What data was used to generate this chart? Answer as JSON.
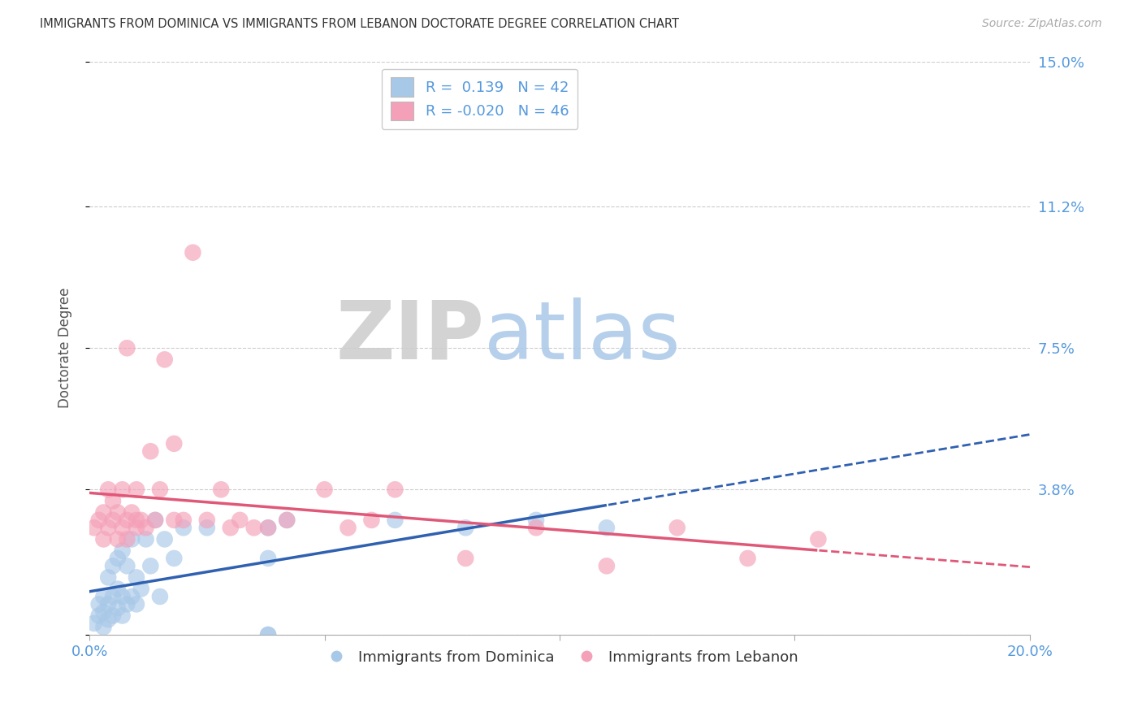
{
  "title": "IMMIGRANTS FROM DOMINICA VS IMMIGRANTS FROM LEBANON DOCTORATE DEGREE CORRELATION CHART",
  "source": "Source: ZipAtlas.com",
  "ylabel": "Doctorate Degree",
  "xlim": [
    0.0,
    0.2
  ],
  "ylim": [
    0.0,
    0.15
  ],
  "R_dominica": 0.139,
  "N_dominica": 42,
  "R_lebanon": -0.02,
  "N_lebanon": 46,
  "color_dominica": "#a8c8e8",
  "color_lebanon": "#f4a0b8",
  "line_color_dominica": "#3060b0",
  "line_color_lebanon": "#e05878",
  "legend_label_dominica": "Immigrants from Dominica",
  "legend_label_lebanon": "Immigrants from Lebanon",
  "dom_x": [
    0.001,
    0.002,
    0.002,
    0.003,
    0.003,
    0.003,
    0.004,
    0.004,
    0.004,
    0.005,
    0.005,
    0.005,
    0.006,
    0.006,
    0.006,
    0.007,
    0.007,
    0.007,
    0.008,
    0.008,
    0.009,
    0.009,
    0.01,
    0.01,
    0.011,
    0.012,
    0.013,
    0.014,
    0.015,
    0.016,
    0.018,
    0.02,
    0.025,
    0.038,
    0.042,
    0.038,
    0.038,
    0.065,
    0.08,
    0.095,
    0.11,
    0.038
  ],
  "dom_y": [
    0.003,
    0.005,
    0.008,
    0.006,
    0.01,
    0.002,
    0.004,
    0.008,
    0.015,
    0.005,
    0.01,
    0.018,
    0.007,
    0.012,
    0.02,
    0.005,
    0.01,
    0.022,
    0.008,
    0.018,
    0.01,
    0.025,
    0.008,
    0.015,
    0.012,
    0.025,
    0.018,
    0.03,
    0.01,
    0.025,
    0.02,
    0.028,
    0.028,
    0.028,
    0.03,
    0.02,
    0.0,
    0.03,
    0.028,
    0.03,
    0.028,
    0.0
  ],
  "leb_x": [
    0.001,
    0.002,
    0.003,
    0.003,
    0.004,
    0.004,
    0.005,
    0.005,
    0.006,
    0.006,
    0.007,
    0.007,
    0.008,
    0.008,
    0.009,
    0.01,
    0.01,
    0.011,
    0.012,
    0.013,
    0.014,
    0.015,
    0.016,
    0.018,
    0.02,
    0.022,
    0.025,
    0.028,
    0.03,
    0.032,
    0.038,
    0.042,
    0.05,
    0.055,
    0.06,
    0.065,
    0.08,
    0.095,
    0.11,
    0.125,
    0.14,
    0.155,
    0.035,
    0.018,
    0.01,
    0.008
  ],
  "leb_y": [
    0.028,
    0.03,
    0.025,
    0.032,
    0.028,
    0.038,
    0.03,
    0.035,
    0.025,
    0.032,
    0.028,
    0.038,
    0.03,
    0.025,
    0.032,
    0.038,
    0.028,
    0.03,
    0.028,
    0.048,
    0.03,
    0.038,
    0.072,
    0.03,
    0.03,
    0.1,
    0.03,
    0.038,
    0.028,
    0.03,
    0.028,
    0.03,
    0.038,
    0.028,
    0.03,
    0.038,
    0.02,
    0.028,
    0.018,
    0.028,
    0.02,
    0.025,
    0.028,
    0.05,
    0.03,
    0.075
  ],
  "zip_color": "#cccccc",
  "atlas_color": "#aac8e8"
}
